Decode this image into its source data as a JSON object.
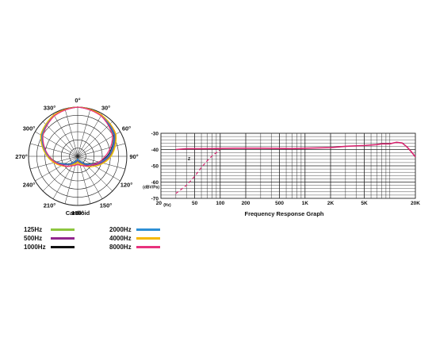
{
  "chart_data": [
    {
      "type": "polar",
      "caption": "Cardioid",
      "angle_labels": [
        "0°",
        "30°",
        "60°",
        "90°",
        "120°",
        "150°",
        "180°",
        "210°",
        "240°",
        "270°",
        "300°",
        "330°"
      ],
      "angles_deg": [
        0,
        30,
        60,
        90,
        120,
        150,
        180,
        210,
        240,
        270,
        300,
        330
      ],
      "r_scale": [
        0,
        1
      ],
      "series": [
        {
          "name": "125Hz",
          "color": "#8dc63f",
          "r": [
            1.0,
            0.97,
            0.88,
            0.66,
            0.36,
            0.17,
            0.1,
            0.17,
            0.32,
            0.58,
            0.84,
            0.96
          ]
        },
        {
          "name": "500Hz",
          "color": "#92278f",
          "r": [
            1.0,
            0.97,
            0.87,
            0.64,
            0.36,
            0.15,
            0.08,
            0.15,
            0.33,
            0.6,
            0.86,
            0.97
          ]
        },
        {
          "name": "1000Hz",
          "color": "#111111",
          "r": [
            1.0,
            0.96,
            0.85,
            0.6,
            0.3,
            0.12,
            0.06,
            0.12,
            0.3,
            0.6,
            0.85,
            0.96
          ]
        },
        {
          "name": "2000Hz",
          "color": "#2d8fd5",
          "r": [
            1.0,
            0.96,
            0.86,
            0.62,
            0.32,
            0.13,
            0.06,
            0.13,
            0.31,
            0.6,
            0.85,
            0.96
          ]
        },
        {
          "name": "4000Hz",
          "color": "#f5b800",
          "r": [
            1.0,
            0.97,
            0.9,
            0.68,
            0.4,
            0.2,
            0.12,
            0.2,
            0.38,
            0.62,
            0.87,
            0.97
          ]
        },
        {
          "name": "8000Hz",
          "color": "#e8327d",
          "r": [
            1.0,
            0.95,
            0.82,
            0.56,
            0.34,
            0.22,
            0.16,
            0.22,
            0.36,
            0.58,
            0.82,
            0.95
          ]
        }
      ]
    },
    {
      "type": "line",
      "title": "Frequency Response Graph",
      "xlabel": "(Hz)",
      "ylabel": "(dBV/Pa)",
      "xscale": "log",
      "xlim": [
        20,
        20000
      ],
      "ylim": [
        -70,
        -30
      ],
      "x_ticks": [
        20,
        50,
        100,
        200,
        500,
        1000,
        2000,
        5000,
        20000
      ],
      "x_tick_labels": [
        "20",
        "50",
        "100",
        "200",
        "500",
        "1K",
        "2K",
        "5K",
        "20K"
      ],
      "y_ticks": [
        -30,
        -40,
        -50,
        -60,
        -70
      ],
      "y_tick_labels": [
        "-30",
        "-40",
        "-50",
        "-60",
        "-70"
      ],
      "grid": true,
      "annotation": "Z",
      "series": [
        {
          "style": "solid",
          "color": "#d6246e",
          "x": [
            30,
            40,
            50,
            60,
            80,
            100,
            150,
            200,
            300,
            500,
            700,
            1000,
            2000,
            3000,
            5000,
            7000,
            8000,
            10000,
            12000,
            14000,
            16000,
            18000,
            20000
          ],
          "y": [
            -40,
            -39.5,
            -39.5,
            -39.5,
            -39.4,
            -39.3,
            -39.2,
            -39.2,
            -39.2,
            -39.3,
            -39.4,
            -39.2,
            -38.8,
            -38,
            -37.5,
            -37,
            -36.5,
            -36.5,
            -35.5,
            -36,
            -38.5,
            -41.5,
            -44.5
          ]
        },
        {
          "style": "dashed",
          "color": "#d6246e",
          "x": [
            30,
            40,
            50,
            60,
            70,
            80,
            100
          ],
          "y": [
            -67,
            -62,
            -56.5,
            -51,
            -47,
            -44,
            -40
          ]
        }
      ]
    }
  ],
  "legend": [
    {
      "label": "125Hz",
      "color": "#8dc63f"
    },
    {
      "label": "2000Hz",
      "color": "#2d8fd5"
    },
    {
      "label": "500Hz",
      "color": "#92278f"
    },
    {
      "label": "4000Hz",
      "color": "#f5b800"
    },
    {
      "label": "1000Hz",
      "color": "#111111"
    },
    {
      "label": "8000Hz",
      "color": "#e8327d"
    }
  ]
}
